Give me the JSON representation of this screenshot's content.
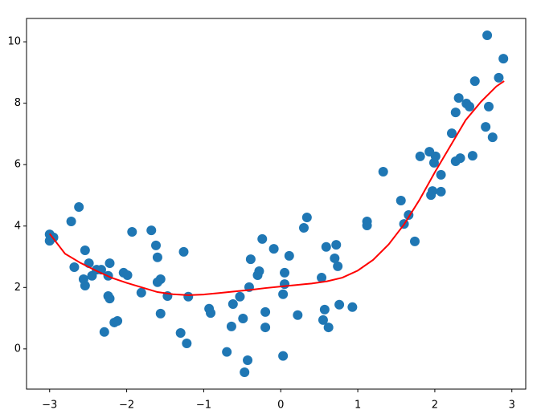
{
  "chart_data": {
    "type": "scatter",
    "xlim": [
      -3.3,
      3.18
    ],
    "ylim": [
      -1.31,
      10.76
    ],
    "xticks": [
      {
        "value": -3,
        "label": "−3"
      },
      {
        "value": -2,
        "label": "−2"
      },
      {
        "value": -1,
        "label": "−1"
      },
      0,
      1,
      2,
      3
    ],
    "yticks": [
      0,
      2,
      4,
      6,
      8,
      10
    ],
    "series": [
      {
        "mode": "markers",
        "color": "#1f77b4",
        "x": [
          -3.0,
          -3.0,
          -2.95,
          -2.72,
          -2.62,
          -2.68,
          -2.54,
          -2.56,
          -2.54,
          -2.49,
          -2.45,
          -2.39,
          -2.33,
          -2.24,
          -2.22,
          -2.24,
          -2.22,
          -2.29,
          -2.16,
          -2.12,
          -2.04,
          -1.99,
          -1.93,
          -1.81,
          -1.68,
          -1.62,
          -1.6,
          -1.6,
          -1.56,
          -1.56,
          -1.47,
          -1.3,
          -1.26,
          -1.22,
          -1.2,
          -0.93,
          -0.91,
          -0.7,
          -0.64,
          -0.62,
          -0.53,
          -0.49,
          -0.47,
          -0.43,
          -0.41,
          -0.39,
          -0.3,
          -0.28,
          -0.24,
          -0.2,
          -0.2,
          -0.09,
          0.03,
          0.03,
          0.05,
          0.05,
          0.11,
          0.22,
          0.3,
          0.34,
          0.53,
          0.55,
          0.57,
          0.59,
          0.62,
          0.7,
          0.72,
          0.74,
          0.76,
          0.93,
          1.12,
          1.12,
          1.33,
          1.56,
          1.6,
          1.66,
          1.74,
          1.81,
          1.93,
          1.95,
          1.97,
          1.99,
          2.01,
          2.08,
          2.08,
          2.22,
          2.27,
          2.27,
          2.31,
          2.33,
          2.41,
          2.45,
          2.49,
          2.52,
          2.66,
          2.68,
          2.7,
          2.75,
          2.83,
          2.89
        ],
        "values": [
          3.73,
          3.52,
          3.63,
          4.15,
          4.62,
          2.66,
          3.21,
          2.27,
          2.06,
          2.79,
          2.38,
          2.58,
          2.58,
          2.38,
          2.79,
          1.72,
          1.64,
          0.55,
          0.86,
          0.91,
          2.48,
          2.4,
          3.81,
          1.83,
          3.86,
          3.37,
          2.98,
          2.17,
          2.27,
          1.15,
          1.72,
          0.52,
          3.16,
          0.18,
          1.7,
          1.31,
          1.17,
          -0.1,
          0.73,
          1.46,
          1.7,
          0.99,
          -0.76,
          -0.37,
          2.01,
          2.92,
          2.4,
          2.53,
          3.58,
          1.2,
          0.7,
          3.26,
          -0.23,
          1.78,
          2.11,
          2.48,
          3.03,
          1.1,
          3.94,
          4.28,
          2.32,
          0.94,
          1.28,
          3.32,
          0.7,
          2.95,
          3.39,
          2.69,
          1.44,
          1.36,
          4.15,
          4.02,
          5.77,
          4.83,
          4.07,
          4.36,
          3.5,
          6.27,
          6.42,
          5.01,
          5.14,
          6.06,
          6.27,
          5.12,
          5.67,
          7.02,
          7.7,
          6.11,
          8.17,
          6.21,
          7.99,
          7.89,
          6.29,
          8.72,
          7.23,
          10.21,
          7.89,
          6.89,
          8.83,
          9.45
        ]
      },
      {
        "mode": "line",
        "color": "#ff0000",
        "x": [
          -3.0,
          -2.8,
          -2.6,
          -2.4,
          -2.2,
          -2.0,
          -1.8,
          -1.6,
          -1.4,
          -1.2,
          -1.0,
          -0.8,
          -0.6,
          -0.4,
          -0.2,
          0.0,
          0.2,
          0.4,
          0.6,
          0.8,
          1.0,
          1.2,
          1.4,
          1.6,
          1.8,
          2.0,
          2.2,
          2.4,
          2.6,
          2.8,
          2.9
        ],
        "values": [
          3.75,
          3.1,
          2.8,
          2.55,
          2.32,
          2.15,
          2.0,
          1.85,
          1.78,
          1.75,
          1.77,
          1.82,
          1.87,
          1.92,
          1.98,
          2.03,
          2.08,
          2.13,
          2.2,
          2.32,
          2.55,
          2.9,
          3.4,
          4.05,
          4.85,
          5.75,
          6.6,
          7.45,
          8.05,
          8.55,
          8.72
        ]
      }
    ]
  }
}
